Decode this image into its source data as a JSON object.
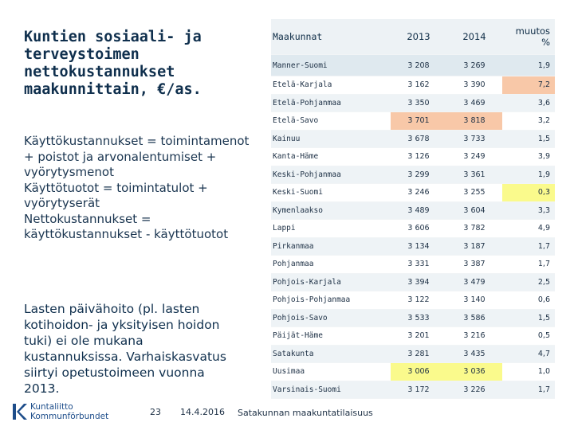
{
  "title": "Kuntien sosiaali- ja terveystoimen nettokustannukset maakunnittain, €/as.",
  "definitions": [
    "Käyttökustannukset = toimintamenot + poistot ja arvonalentumiset + vyörytysmenot",
    "Käyttötuotot = toimintatulot + vyörytyserät",
    "Nettokustannukset = käyttökustannukset - käyttötuotot"
  ],
  "note": "Lasten päivähoito (pl. lasten kotihoidon- ja yksityisen hoidon tuki) ei ole mukana kustannuksissa. Varhaiskasvatus siirtyi opetustoimeen vuonna 2013.",
  "table": {
    "headers": {
      "region": "Maakunnat",
      "y2013": "2013",
      "y2014": "2014",
      "change": "muutos %"
    },
    "national": {
      "region": "Manner-Suomi",
      "y2013": "3 208",
      "y2014": "3 269",
      "change": "1,9"
    },
    "rows": [
      {
        "region": "Etelä-Karjala",
        "y2013": "3 162",
        "y2014": "3 390",
        "change": "7,2",
        "highlight": "orange-change"
      },
      {
        "region": "Etelä-Pohjanmaa",
        "y2013": "3 350",
        "y2014": "3 469",
        "change": "3,6",
        "highlight": ""
      },
      {
        "region": "Etelä-Savo",
        "y2013": "3 701",
        "y2014": "3 818",
        "change": "3,2",
        "highlight": "orange-values"
      },
      {
        "region": "Kainuu",
        "y2013": "3 678",
        "y2014": "3 733",
        "change": "1,5",
        "highlight": ""
      },
      {
        "region": "Kanta-Häme",
        "y2013": "3 126",
        "y2014": "3 249",
        "change": "3,9",
        "highlight": ""
      },
      {
        "region": "Keski-Pohjanmaa",
        "y2013": "3 299",
        "y2014": "3 361",
        "change": "1,9",
        "highlight": ""
      },
      {
        "region": "Keski-Suomi",
        "y2013": "3 246",
        "y2014": "3 255",
        "change": "0,3",
        "highlight": "yellow-change"
      },
      {
        "region": "Kymenlaakso",
        "y2013": "3 489",
        "y2014": "3 604",
        "change": "3,3",
        "highlight": ""
      },
      {
        "region": "Lappi",
        "y2013": "3 606",
        "y2014": "3 782",
        "change": "4,9",
        "highlight": ""
      },
      {
        "region": "Pirkanmaa",
        "y2013": "3 134",
        "y2014": "3 187",
        "change": "1,7",
        "highlight": ""
      },
      {
        "region": "Pohjanmaa",
        "y2013": "3 331",
        "y2014": "3 387",
        "change": "1,7",
        "highlight": ""
      },
      {
        "region": "Pohjois-Karjala",
        "y2013": "3 394",
        "y2014": "3 479",
        "change": "2,5",
        "highlight": ""
      },
      {
        "region": "Pohjois-Pohjanmaa",
        "y2013": "3 122",
        "y2014": "3 140",
        "change": "0,6",
        "highlight": ""
      },
      {
        "region": "Pohjois-Savo",
        "y2013": "3 533",
        "y2014": "3 586",
        "change": "1,5",
        "highlight": ""
      },
      {
        "region": "Päijät-Häme",
        "y2013": "3 201",
        "y2014": "3 216",
        "change": "0,5",
        "highlight": ""
      },
      {
        "region": "Satakunta",
        "y2013": "3 281",
        "y2014": "3 435",
        "change": "4,7",
        "highlight": ""
      },
      {
        "region": "Uusimaa",
        "y2013": "3 006",
        "y2014": "3 036",
        "change": "1,0",
        "highlight": "yellow-values"
      },
      {
        "region": "Varsinais-Suomi",
        "y2013": "3 172",
        "y2014": "3 226",
        "change": "1,7",
        "highlight": ""
      }
    ]
  },
  "footer": {
    "logo_line1": "Kuntaliitto",
    "logo_line2": "Kommunförbundet",
    "page_number": "23",
    "date": "14.4.2016",
    "source": "Satakunnan maakuntatilaisuus"
  },
  "colors": {
    "orange": "#f8c8a8",
    "yellow": "#fafa8c",
    "header_bg": "#edf2f5"
  }
}
